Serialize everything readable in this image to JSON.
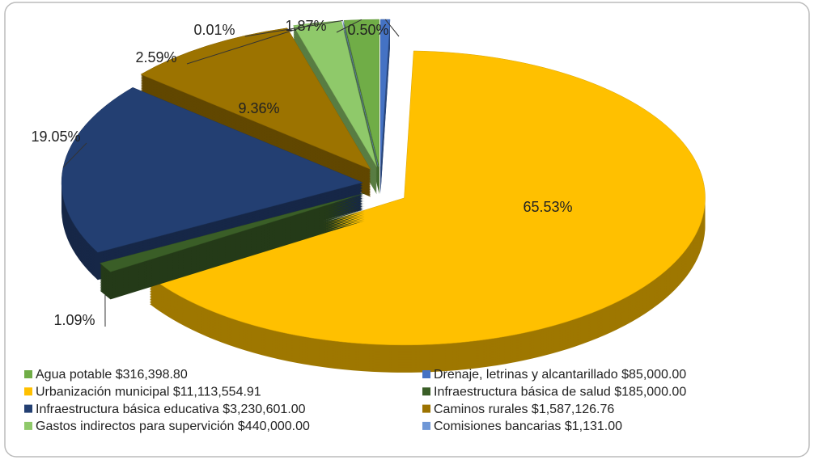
{
  "chart_data": {
    "type": "pie3d",
    "categories": [
      "Agua potable $316,398.80",
      "Drenaje, letrinas y alcantarillado $85,000.00",
      "Urbanización municipal $11,113,554.91",
      "Infraestructura básica de salud $185,000.00",
      "Infraestructura básica educativa $3,230,601.00",
      "Caminos rurales $1,587,126.76",
      "Gastos indirectos para supervición $440,000.00",
      "Comisiones bancarias $1,131.00"
    ],
    "values": [
      1.87,
      0.5,
      65.53,
      1.09,
      19.05,
      9.36,
      2.59,
      0.01
    ],
    "value_labels": [
      "1.87%",
      "0.50%",
      "65.53%",
      "1.09%",
      "19.05%",
      "9.36%",
      "2.59%",
      "0.01%"
    ],
    "colors": [
      "#70ad47",
      "#4472c4",
      "#ffc000",
      "#3a5e27",
      "#233f72",
      "#9c7300",
      "#8fc96a",
      "#6f97d6"
    ],
    "legend": "bottom"
  }
}
